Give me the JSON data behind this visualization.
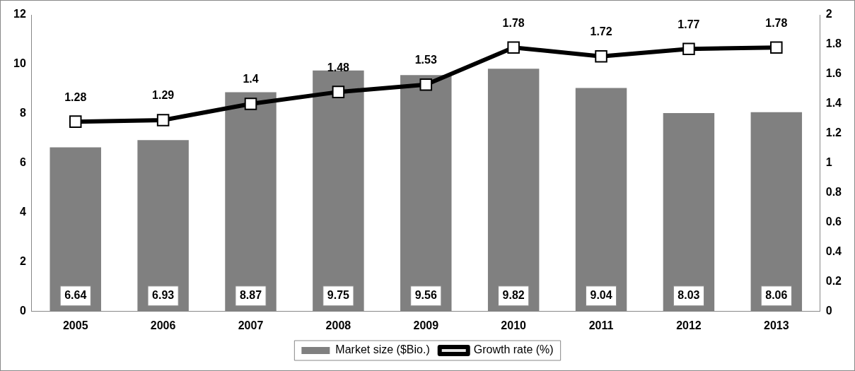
{
  "chart_data": {
    "type": "bar",
    "categories": [
      "2005",
      "2006",
      "2007",
      "2008",
      "2009",
      "2010",
      "2011",
      "2012",
      "2013"
    ],
    "series": [
      {
        "name": "Market size ($Bio.)",
        "color": "#808080",
        "values": [
          6.64,
          6.93,
          8.87,
          9.75,
          9.56,
          9.82,
          9.04,
          8.03,
          8.06
        ]
      },
      {
        "name": "Growth rate (%)",
        "type": "line",
        "axis": "y2",
        "color": "#000000",
        "values": [
          1.28,
          1.29,
          1.4,
          1.48,
          1.53,
          1.78,
          1.72,
          1.77,
          1.78
        ]
      }
    ],
    "ylim": [
      0,
      12
    ],
    "yticks": [
      0,
      2,
      4,
      6,
      8,
      10,
      12
    ],
    "y2lim": [
      0,
      2
    ],
    "y2ticks": [
      0,
      0.2,
      0.4,
      0.6,
      0.8,
      1,
      1.2,
      1.4,
      1.6,
      1.8,
      2
    ],
    "grid": false,
    "legend": "bottom",
    "marker": "square",
    "line_style": "solid",
    "data_labels": true
  }
}
